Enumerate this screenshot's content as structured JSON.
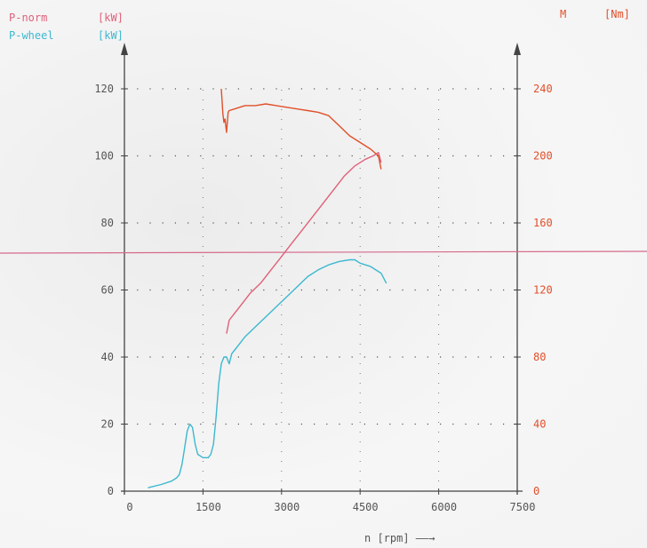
{
  "chart_data": {
    "type": "line",
    "legend": [
      {
        "name": "P-norm",
        "unit": "[kW]",
        "color": "#e0607a"
      },
      {
        "name": "P-wheel",
        "unit": "[kW]",
        "color": "#3cb8d0"
      }
    ],
    "right_axis_title": {
      "symbol": "M",
      "unit": "[Nm]",
      "color": "#e0502a"
    },
    "xlabel": "n [rpm] ——→",
    "x_ticks": [
      "0",
      "1500",
      "3000",
      "4500",
      "6000",
      "7500"
    ],
    "x_tick_values": [
      0,
      1500,
      3000,
      4500,
      6000,
      7500
    ],
    "left_ticks": [
      "0",
      "20",
      "40",
      "60",
      "80",
      "100",
      "120"
    ],
    "left_tick_values": [
      0,
      20,
      40,
      60,
      80,
      100,
      120
    ],
    "right_ticks": [
      "0",
      "40",
      "80",
      "120",
      "160",
      "200",
      "240"
    ],
    "right_tick_values": [
      0,
      40,
      80,
      120,
      160,
      200,
      240
    ],
    "xlim": [
      0,
      7500
    ],
    "ylim_left": [
      0,
      120
    ],
    "ylim_right": [
      0,
      240
    ],
    "grid": "dotted",
    "reference_line_kw": 71,
    "series": [
      {
        "name": "P-norm",
        "axis": "left",
        "color": "#e0607a",
        "x": [
          1950,
          2000,
          2100,
          2200,
          2400,
          2600,
          2800,
          3000,
          3200,
          3400,
          3600,
          3800,
          4000,
          4200,
          4400,
          4600,
          4750,
          4850,
          4900
        ],
        "values": [
          47,
          51,
          53,
          55,
          59,
          62,
          66,
          70,
          74,
          78,
          82,
          86,
          90,
          94,
          97,
          99,
          100,
          101,
          98
        ]
      },
      {
        "name": "P-wheel",
        "axis": "left",
        "color": "#3cb8d0",
        "x": [
          450,
          700,
          900,
          1000,
          1050,
          1100,
          1150,
          1200,
          1250,
          1300,
          1350,
          1400,
          1500,
          1600,
          1650,
          1700,
          1750,
          1800,
          1850,
          1900,
          1950,
          2000,
          2050,
          2100,
          2300,
          2500,
          2700,
          2900,
          3100,
          3300,
          3500,
          3700,
          3900,
          4100,
          4300,
          4400,
          4500,
          4700,
          4900,
          5000
        ],
        "values": [
          1,
          2,
          3,
          4,
          5,
          8,
          13,
          18,
          20,
          19,
          14,
          11,
          10,
          10,
          11,
          14,
          22,
          32,
          38,
          40,
          40,
          38,
          41,
          42,
          46,
          49,
          52,
          55,
          58,
          61,
          64,
          66,
          67.5,
          68.5,
          69,
          69,
          68,
          67,
          65,
          62
        ]
      },
      {
        "name": "M",
        "axis": "right",
        "color": "#e0502a",
        "x": [
          1850,
          1880,
          1900,
          1920,
          1950,
          1980,
          2000,
          2100,
          2300,
          2500,
          2700,
          2900,
          3100,
          3300,
          3500,
          3700,
          3900,
          4100,
          4300,
          4500,
          4700,
          4850,
          4900
        ],
        "values": [
          240,
          225,
          220,
          222,
          214,
          226,
          227,
          228,
          230,
          230,
          231,
          230,
          229,
          228,
          227,
          226,
          224,
          218,
          212,
          208,
          204,
          200,
          192
        ]
      }
    ]
  }
}
